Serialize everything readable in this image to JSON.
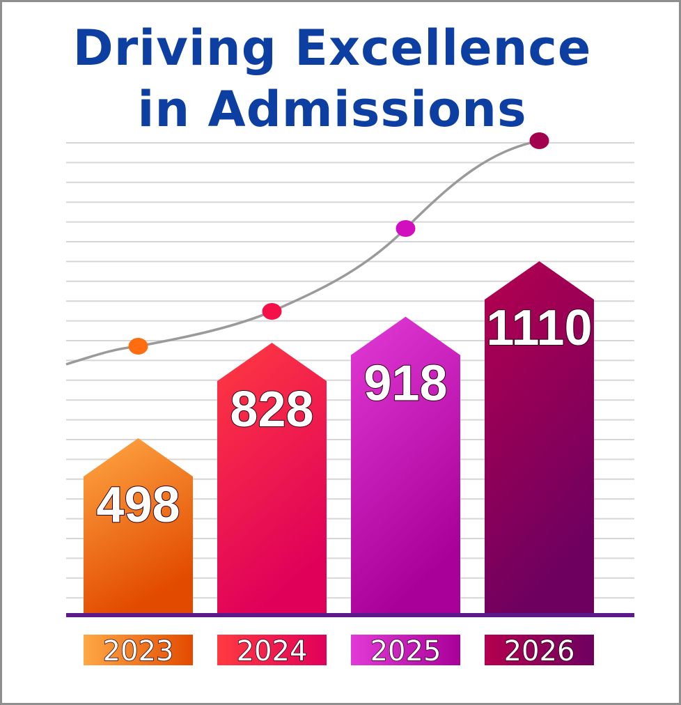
{
  "chart_data": {
    "type": "bar",
    "title_lines": [
      "Driving Excellence",
      "in Admissions"
    ],
    "categories": [
      "2023",
      "2024",
      "2025",
      "2026"
    ],
    "values": [
      498,
      828,
      918,
      1110
    ],
    "value_labels": [
      "498",
      "828",
      "918",
      "1110"
    ],
    "trend_line": true,
    "grid": true,
    "colors": {
      "title": "#0d3fa3",
      "baseline": "#5a1a8c",
      "grid": "#d6d6d6",
      "trend": "#9a9a9a",
      "bars": [
        {
          "top": "#ffa845",
          "bottom": "#e24a00",
          "dot": "#ff6d10"
        },
        {
          "top": "#ff3a40",
          "bottom": "#e0005a",
          "dot": "#f5104a"
        },
        {
          "top": "#e23ad6",
          "bottom": "#a80098",
          "dot": "#d10fbe"
        },
        {
          "top": "#b5004f",
          "bottom": "#6e0060",
          "dot": "#a3004f"
        }
      ]
    }
  }
}
